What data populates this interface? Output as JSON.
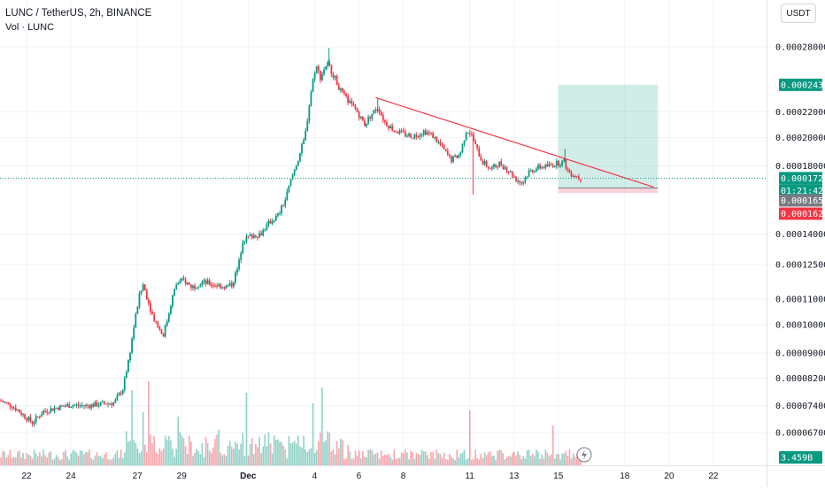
{
  "header": {
    "title": "LUNC / TetherUS, 2h, BINANCE",
    "volume_label": "Vol · LUNC",
    "currency_button": "USDT"
  },
  "price_tags": {
    "target": {
      "value": "0.00024331",
      "color": "#089981"
    },
    "current": {
      "value": "0.00017213",
      "color": "#089981"
    },
    "countdown": {
      "value": "01:21:42",
      "color": "#089981"
    },
    "entry": {
      "value": "0.00016595",
      "color": "#787b86"
    },
    "stop": {
      "value": "0.00016292",
      "color": "#f23645"
    },
    "volume": {
      "value": "3.459B",
      "color": "#089981"
    }
  },
  "chart_data": {
    "type": "candlestick",
    "interval": "2h",
    "yscale": "log",
    "ylim": [
      6e-05,
      0.0003
    ],
    "y_ticks": [
      "0.00028000",
      "0.00022000",
      "0.00020000",
      "0.00018000",
      "0.00014000",
      "0.00012500",
      "0.00011000",
      "0.00010000",
      "0.00009000",
      "0.00008200",
      "0.00007400",
      "0.00006700"
    ],
    "y_tick_values": [
      0.00028,
      0.00022,
      0.0002,
      0.00018,
      0.00014,
      0.000125,
      0.00011,
      0.0001,
      9e-05,
      8.2e-05,
      7.4e-05,
      6.7e-05
    ],
    "x_ticks": [
      "22",
      "24",
      "27",
      "29",
      "Dec",
      "4",
      "6",
      "8",
      "11",
      "13",
      "15",
      "18",
      "20",
      "22"
    ],
    "x_tick_days": [
      -9,
      -7,
      -4,
      -2,
      1,
      4,
      6,
      8,
      11,
      13,
      15,
      18,
      20,
      22
    ],
    "x_range_days": [
      -10.2,
      24.4
    ],
    "price_path": [
      [
        -10.2,
        7.55e-05
      ],
      [
        -9.6,
        7.4e-05
      ],
      [
        -9.0,
        7.1e-05
      ],
      [
        -8.7,
        6.95e-05
      ],
      [
        -8.2,
        7.25e-05
      ],
      [
        -7.6,
        7.35e-05
      ],
      [
        -7.0,
        7.42e-05
      ],
      [
        -6.3,
        7.4e-05
      ],
      [
        -5.6,
        7.45e-05
      ],
      [
        -5.0,
        7.48e-05
      ],
      [
        -4.6,
        7.9e-05
      ],
      [
        -4.3,
        9e-05
      ],
      [
        -4.1,
        0.0001
      ],
      [
        -3.9,
        0.00011
      ],
      [
        -3.7,
        0.000116
      ],
      [
        -3.5,
        0.00011
      ],
      [
        -3.3,
        0.000104
      ],
      [
        -3.0,
        9.9e-05
      ],
      [
        -2.8,
        9.6e-05
      ],
      [
        -2.6,
        0.000102
      ],
      [
        -2.4,
        0.00011
      ],
      [
        -2.2,
        0.000116
      ],
      [
        -1.9,
        0.000118
      ],
      [
        -1.5,
        0.000115
      ],
      [
        -1.0,
        0.000117
      ],
      [
        -0.5,
        0.000116
      ],
      [
        0.0,
        0.000115
      ],
      [
        0.3,
        0.000116
      ],
      [
        0.6,
        0.000124
      ],
      [
        0.8,
        0.000137
      ],
      [
        1.2,
        0.000139
      ],
      [
        1.6,
        0.00014
      ],
      [
        2.0,
        0.000146
      ],
      [
        2.4,
        0.00015
      ],
      [
        2.7,
        0.000158
      ],
      [
        3.0,
        0.000172
      ],
      [
        3.3,
        0.000185
      ],
      [
        3.6,
        0.0002
      ],
      [
        3.9,
        0.00024
      ],
      [
        4.1,
        0.000262
      ],
      [
        4.3,
        0.00025
      ],
      [
        4.6,
        0.000264
      ],
      [
        4.9,
        0.000252
      ],
      [
        5.2,
        0.000238
      ],
      [
        5.6,
        0.000228
      ],
      [
        5.9,
        0.000222
      ],
      [
        6.3,
        0.00021
      ],
      [
        6.6,
        0.000218
      ],
      [
        6.9,
        0.000224
      ],
      [
        7.2,
        0.000212
      ],
      [
        7.6,
        0.000206
      ],
      [
        8.0,
        0.000203
      ],
      [
        8.5,
        0.000201
      ],
      [
        9.0,
        0.000205
      ],
      [
        9.4,
        0.000201
      ],
      [
        9.8,
        0.000193
      ],
      [
        10.2,
        0.000184
      ],
      [
        10.6,
        0.000188
      ],
      [
        10.9,
        0.000206
      ],
      [
        11.1,
        0.000203
      ],
      [
        11.3,
        0.000194
      ],
      [
        11.6,
        0.000183
      ],
      [
        12.0,
        0.000178
      ],
      [
        12.4,
        0.000182
      ],
      [
        12.8,
        0.000177
      ],
      [
        13.1,
        0.000172
      ],
      [
        13.4,
        0.000169
      ],
      [
        13.7,
        0.000176
      ],
      [
        14.1,
        0.000179
      ],
      [
        14.6,
        0.00018
      ],
      [
        15.0,
        0.000182
      ],
      [
        15.3,
        0.000183
      ],
      [
        15.5,
        0.000176
      ],
      [
        15.8,
        0.000174
      ],
      [
        16.0,
        0.00017213
      ]
    ],
    "spikes": [
      {
        "day": 11.15,
        "low": 0.000162
      },
      {
        "day": 15.3,
        "high": 0.000192
      },
      {
        "day": 4.65,
        "high": 0.000279
      },
      {
        "day": 6.85,
        "high": 0.000232
      }
    ],
    "volume_spikes": [
      {
        "day": -4.3,
        "rel": 0.85
      },
      {
        "day": -3.8,
        "rel": 0.6
      },
      {
        "day": -3.5,
        "rel": 0.95
      },
      {
        "day": -2.2,
        "rel": 0.55
      },
      {
        "day": 0.9,
        "rel": 0.82
      },
      {
        "day": 3.9,
        "rel": 0.7
      },
      {
        "day": 4.3,
        "rel": 0.88
      },
      {
        "day": 11.0,
        "rel": 0.62
      },
      {
        "day": 14.7,
        "rel": 0.45
      }
    ],
    "trendline": {
      "from": [
        6.75,
        0.000232
      ],
      "to": [
        19.3,
        0.0001665
      ],
      "color": "#f23645"
    },
    "position": {
      "start_day": 15.0,
      "end_day": 19.5,
      "target": 0.00024331,
      "entry": 0.00016595,
      "stop": 0.00016292
    },
    "current_price": 0.00017213
  }
}
